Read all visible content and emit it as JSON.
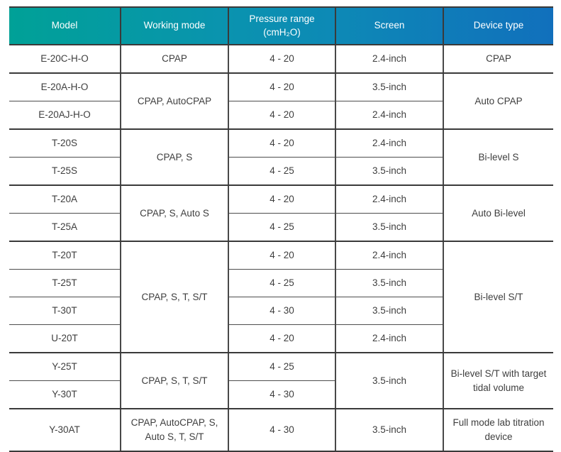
{
  "table": {
    "columns": [
      "Model",
      "Working mode",
      "Pressure range\n(cmH₂O)",
      "Screen",
      "Device type"
    ],
    "header_gradient": [
      "#00a197",
      "#0c8fb5",
      "#1170bc"
    ],
    "header_text_color": "#ffffff",
    "body_text_color": "#3e3e3e",
    "rows": [
      {
        "model": "E-20C-H-O",
        "mode": "CPAP",
        "pressure": "4 - 20",
        "screen": "2.4-inch",
        "type": "CPAP"
      },
      {
        "model": "E-20A-H-O",
        "mode": "CPAP, AutoCPAP",
        "pressure": "4 - 20",
        "screen": "3.5-inch",
        "type": "Auto CPAP"
      },
      {
        "model": "E-20AJ-H-O",
        "pressure": "4 - 20",
        "screen": "2.4-inch"
      },
      {
        "model": "T-20S",
        "mode": "CPAP, S",
        "pressure": "4 - 20",
        "screen": "2.4-inch",
        "type": "Bi-level S"
      },
      {
        "model": "T-25S",
        "pressure": "4 - 25",
        "screen": "3.5-inch"
      },
      {
        "model": "T-20A",
        "mode": "CPAP, S, Auto S",
        "pressure": "4 - 20",
        "screen": "2.4-inch",
        "type": "Auto Bi-level"
      },
      {
        "model": "T-25A",
        "pressure": "4 - 25",
        "screen": "3.5-inch"
      },
      {
        "model": "T-20T",
        "mode": "CPAP, S, T, S/T",
        "pressure": "4 - 20",
        "screen": "2.4-inch",
        "type": "Bi-level S/T"
      },
      {
        "model": "T-25T",
        "pressure": "4 - 25",
        "screen": "3.5-inch"
      },
      {
        "model": "T-30T",
        "pressure": "4 - 30",
        "screen": "3.5-inch"
      },
      {
        "model": "U-20T",
        "pressure": "4 - 20",
        "screen": "2.4-inch"
      },
      {
        "model": "Y-25T",
        "mode": "CPAP, S, T, S/T",
        "pressure": "4 - 25",
        "screen": "3.5-inch",
        "type": "Bi-level S/T with target tidal volume"
      },
      {
        "model": "Y-30T",
        "pressure": "4 - 30"
      },
      {
        "model": "Y-30AT",
        "mode": "CPAP, AutoCPAP, S, Auto S, T, S/T",
        "pressure": "4 - 30",
        "screen": "3.5-inch",
        "type": "Full mode lab titration device"
      }
    ]
  }
}
